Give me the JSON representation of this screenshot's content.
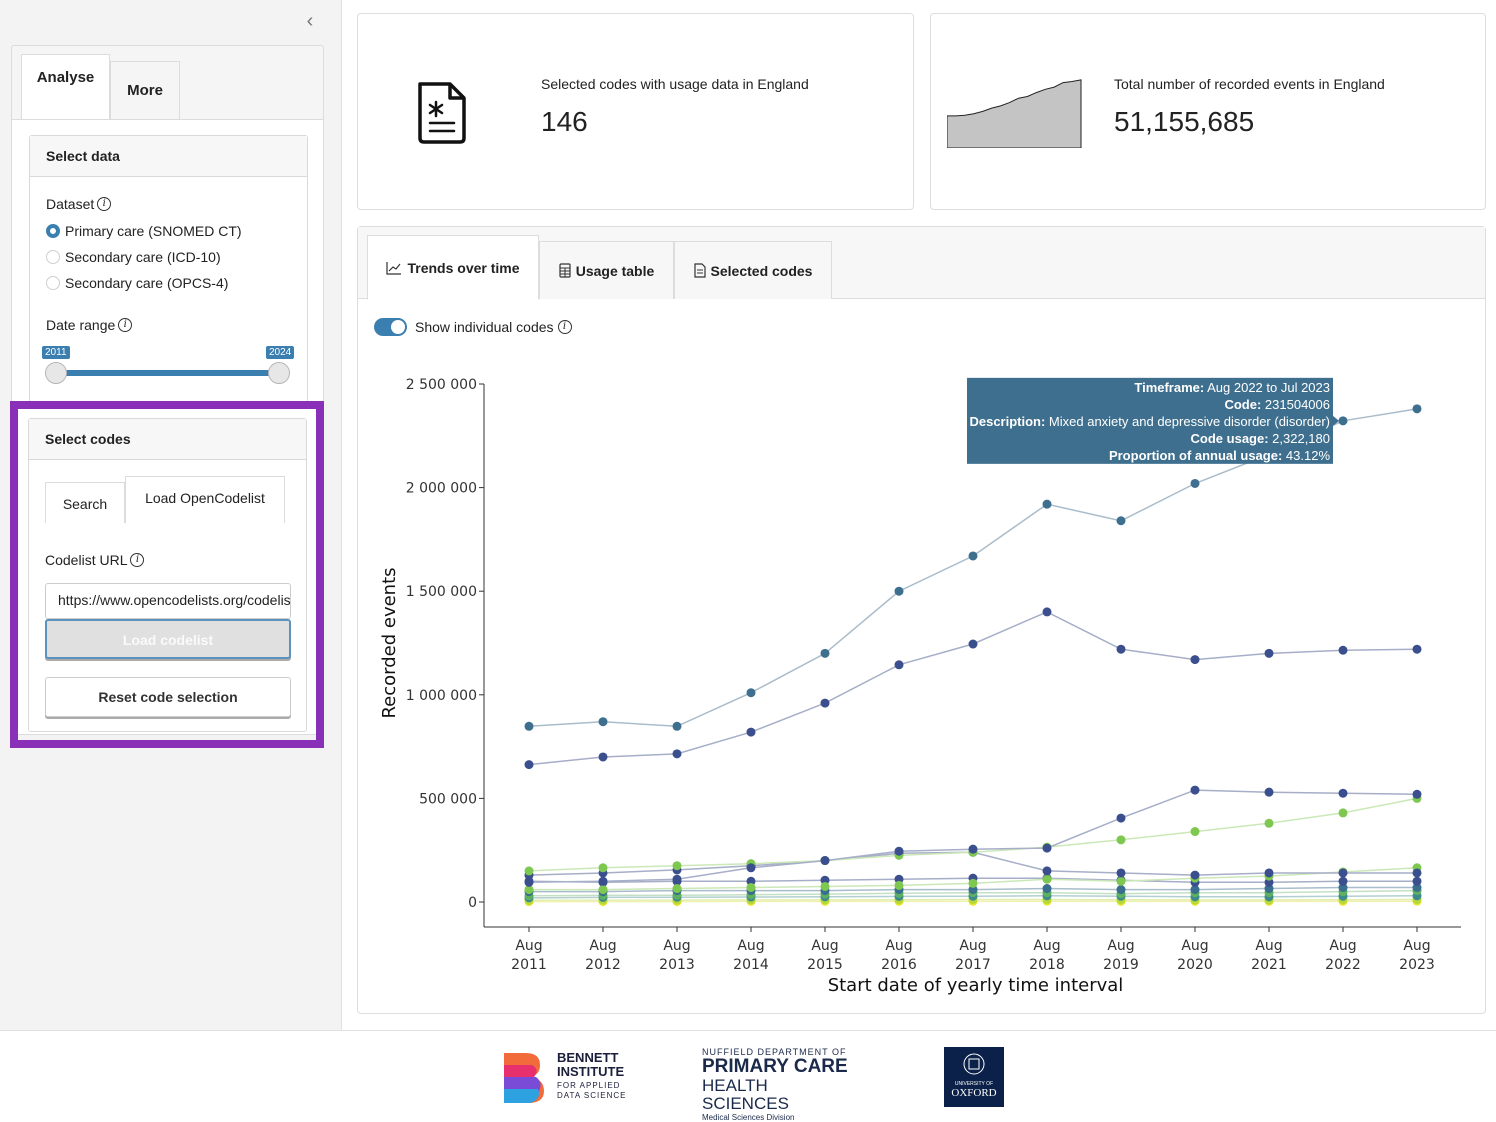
{
  "sidebar": {
    "collapse_icon": "chevron-left",
    "tabs": [
      {
        "label": "Analyse"
      },
      {
        "label": "More"
      }
    ],
    "select_data": {
      "title": "Select data",
      "dataset_label": "Dataset",
      "datasets": [
        {
          "label": "Primary care (SNOMED CT)",
          "checked": true
        },
        {
          "label": "Secondary care (ICD-10)",
          "checked": false
        },
        {
          "label": "Secondary care (OPCS-4)",
          "checked": false
        }
      ],
      "date_range_label": "Date range",
      "date_min": "2011",
      "date_max": "2024"
    },
    "select_codes": {
      "title": "Select codes",
      "tabs": [
        {
          "label": "Search"
        },
        {
          "label": "Load OpenCodelist"
        }
      ],
      "url_label": "Codelist URL",
      "url_value": "https://www.opencodelists.org/codelist/",
      "load_button": "Load codelist",
      "reset_button": "Reset code selection"
    }
  },
  "value_boxes": [
    {
      "title": "Selected codes with usage data in England",
      "value": "146",
      "icon": "document-asterisk-icon"
    },
    {
      "title": "Total number of recorded events in England",
      "value": "51,155,685",
      "sparkline": [
        58,
        58,
        59,
        62,
        66,
        72,
        76,
        82,
        90,
        93,
        100,
        106,
        110,
        118,
        120,
        123
      ]
    }
  ],
  "main_tabs": [
    {
      "label": "Trends over time",
      "icon": "line-chart-icon"
    },
    {
      "label": "Usage table",
      "icon": "table-icon"
    },
    {
      "label": "Selected codes",
      "icon": "file-list-icon"
    }
  ],
  "toggle_label": "Show individual codes",
  "tooltip": [
    {
      "key": "Timeframe:",
      "value": " Aug 2022 to Jul 2023"
    },
    {
      "key": "Code:",
      "value": " 231504006"
    },
    {
      "key": "Description:",
      "value": " Mixed anxiety and depressive disorder (disorder)"
    },
    {
      "key": "Code usage:",
      "value": " 2,322,180"
    },
    {
      "key": "Proportion of annual usage:",
      "value": " 43.12%"
    }
  ],
  "chart_data": {
    "type": "line",
    "xlabel": "Start date of yearly time interval",
    "ylabel": "Recorded events",
    "ylim": [
      0,
      2500000
    ],
    "yticks": [
      0,
      500000,
      1000000,
      1500000,
      2000000,
      2500000
    ],
    "ytick_labels": [
      "0",
      "500 000",
      "1 000 000",
      "1 500 000",
      "2 000 000",
      "2 500 000"
    ],
    "categories": [
      "Aug 2011",
      "Aug 2012",
      "Aug 2013",
      "Aug 2014",
      "Aug 2015",
      "Aug 2016",
      "Aug 2017",
      "Aug 2018",
      "Aug 2019",
      "Aug 2020",
      "Aug 2021",
      "Aug 2022",
      "Aug 2023"
    ],
    "series": [
      {
        "color": "#3e6f8e",
        "line": "#a9bccb",
        "values": [
          848000,
          870000,
          848000,
          1010000,
          1200000,
          1500000,
          1670000,
          1920000,
          1840000,
          2020000,
          2160000,
          2322180,
          2380000
        ]
      },
      {
        "color": "#3b4f8e",
        "line": "#a6aec8",
        "values": [
          663000,
          700000,
          715000,
          820000,
          960000,
          1145000,
          1245000,
          1400000,
          1220000,
          1170000,
          1200000,
          1215000,
          1220000
        ]
      },
      {
        "color": "#3b4f8e",
        "line": "#a6aec8",
        "values": [
          95000,
          100000,
          110000,
          165000,
          200000,
          245000,
          255000,
          260000,
          405000,
          540000,
          530000,
          525000,
          520000
        ]
      },
      {
        "color": "#7ec851",
        "line": "#cbe8b8",
        "values": [
          150000,
          165000,
          175000,
          185000,
          200000,
          225000,
          240000,
          265000,
          300000,
          340000,
          380000,
          430000,
          500000
        ]
      },
      {
        "color": "#3b4f8e",
        "line": "#a6aec8",
        "values": [
          130000,
          140000,
          155000,
          175000,
          200000,
          235000,
          240000,
          150000,
          140000,
          130000,
          140000,
          140000,
          140000
        ]
      },
      {
        "color": "#7ec851",
        "line": "#cbe8b8",
        "values": [
          60000,
          60000,
          65000,
          70000,
          75000,
          80000,
          90000,
          110000,
          100000,
          115000,
          125000,
          145000,
          165000
        ]
      },
      {
        "color": "#3b4f8e",
        "line": "#a6aec8",
        "values": [
          100000,
          95000,
          100000,
          100000,
          105000,
          110000,
          115000,
          115000,
          105000,
          95000,
          95000,
          100000,
          100000
        ]
      },
      {
        "color": "#3a6e8e",
        "line": "#a9bccb",
        "values": [
          50000,
          50000,
          55000,
          55000,
          55000,
          60000,
          60000,
          65000,
          60000,
          60000,
          65000,
          70000,
          70000
        ]
      },
      {
        "color": "#5cb05f",
        "line": "#c3e0c4",
        "values": [
          30000,
          32000,
          33000,
          35000,
          38000,
          42000,
          45000,
          45000,
          40000,
          45000,
          45000,
          50000,
          55000
        ]
      },
      {
        "color": "#3d8a8c",
        "line": "#b1cfd0",
        "values": [
          20000,
          22000,
          23000,
          24000,
          25000,
          27000,
          28000,
          30000,
          28000,
          25000,
          25000,
          28000,
          30000
        ]
      },
      {
        "color": "#b8d838",
        "line": "#e2efb4",
        "values": [
          8000,
          9000,
          9000,
          10000,
          10000,
          11000,
          12000,
          12000,
          11000,
          10000,
          10000,
          11000,
          12000
        ]
      },
      {
        "color": "#e8e530",
        "line": "#f3f1b0",
        "values": [
          2000,
          2000,
          2000,
          3000,
          3000,
          3000,
          3000,
          4000,
          3000,
          3000,
          3000,
          3000,
          4000
        ]
      }
    ]
  },
  "footer": {
    "bennett": [
      "BENNETT",
      "INSTITUTE",
      "FOR APPLIED",
      "DATA SCIENCE"
    ],
    "nuffield": [
      "NUFFIELD DEPARTMENT OF",
      "PRIMARY CARE",
      "HEALTH SCIENCES",
      "Medical Sciences Division"
    ],
    "oxford": [
      "UNIVERSITY OF",
      "OXFORD"
    ]
  }
}
